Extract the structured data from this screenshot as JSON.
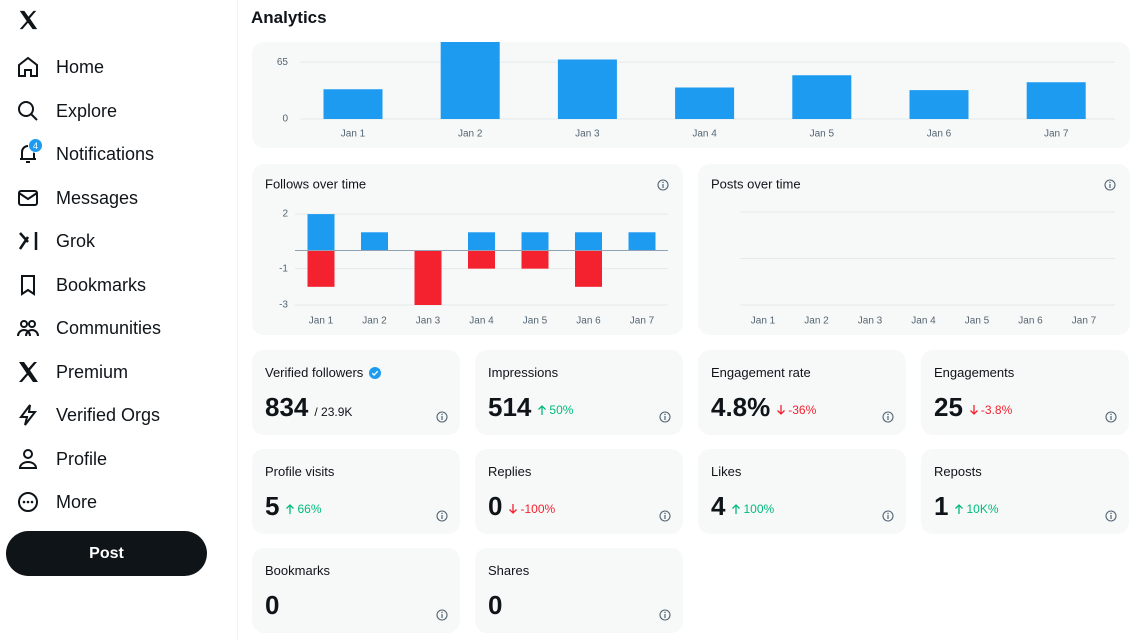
{
  "sidebar": {
    "nav": [
      "Home",
      "Explore",
      "Notifications",
      "Messages",
      "Grok",
      "Bookmarks",
      "Communities",
      "Premium",
      "Verified Orgs",
      "Profile",
      "More"
    ],
    "notification_badge": "4",
    "post_button": "Post"
  },
  "header": {
    "title": "Analytics"
  },
  "chart_data": [
    {
      "type": "bar",
      "categories": [
        "Jan 1",
        "Jan 2",
        "Jan 3",
        "Jan 4",
        "Jan 5",
        "Jan 6",
        "Jan 7"
      ],
      "values": [
        34,
        88,
        68,
        36,
        50,
        33,
        42
      ],
      "color": "#1d9bf0",
      "ylim": [
        0,
        88
      ],
      "yticks": [
        0,
        65
      ],
      "grid": true
    },
    {
      "type": "bar",
      "title": "Follows over time",
      "categories": [
        "Jan 1",
        "Jan 2",
        "Jan 3",
        "Jan 4",
        "Jan 5",
        "Jan 6",
        "Jan 7"
      ],
      "series": [
        {
          "color": "#1d9bf0",
          "values": [
            2,
            1,
            0,
            1,
            1,
            1,
            1
          ]
        },
        {
          "color": "#f4212e",
          "values": [
            -2,
            0,
            -3,
            -1,
            -1,
            -2,
            0
          ]
        }
      ],
      "ylim": [
        -3,
        2.5
      ],
      "yticks": [
        2,
        -1,
        -3
      ],
      "grid": true
    },
    {
      "type": "bar",
      "title": "Posts over time",
      "categories": [
        "Jan 1",
        "Jan 2",
        "Jan 3",
        "Jan 4",
        "Jan 5",
        "Jan 6",
        "Jan 7"
      ],
      "grid": true
    }
  ],
  "stats": [
    {
      "label": "Verified followers",
      "value": "834",
      "suffix": "/ 23.9K"
    },
    {
      "label": "Impressions",
      "value": "514",
      "change": "50%",
      "trend": "up"
    },
    {
      "label": "Engagement rate",
      "value": "4.8%",
      "change": "-36%",
      "trend": "down"
    },
    {
      "label": "Engagements",
      "value": "25",
      "change": "-3.8%",
      "trend": "down"
    },
    {
      "label": "Profile visits",
      "value": "5",
      "change": "66%",
      "trend": "up"
    },
    {
      "label": "Replies",
      "value": "0",
      "change": "-100%",
      "trend": "down"
    },
    {
      "label": "Likes",
      "value": "4",
      "change": "100%",
      "trend": "up"
    },
    {
      "label": "Reposts",
      "value": "1",
      "change": "10K%",
      "trend": "up"
    },
    {
      "label": "Bookmarks",
      "value": "0"
    },
    {
      "label": "Shares",
      "value": "0"
    }
  ]
}
